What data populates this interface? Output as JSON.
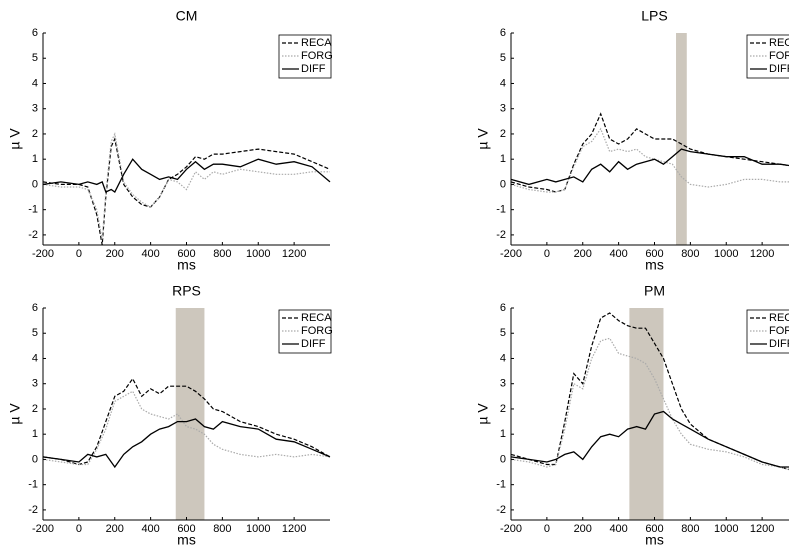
{
  "chart_data": [
    {
      "type": "line",
      "title": "CM",
      "x_label": "ms",
      "y_label": "µ V",
      "x": [
        -200,
        -100,
        0,
        50,
        100,
        130,
        150,
        180,
        200,
        250,
        300,
        350,
        400,
        450,
        500,
        550,
        600,
        650,
        700,
        750,
        800,
        900,
        1000,
        1100,
        1200,
        1300,
        1400
      ],
      "series": [
        {
          "name": "RECA",
          "color": "#000000",
          "style": "dashed",
          "values": [
            0.1,
            0,
            0,
            -0.1,
            -1.2,
            -2.4,
            -0.5,
            1.5,
            1.8,
            0,
            -0.5,
            -0.8,
            -0.9,
            -0.5,
            0.2,
            0.4,
            0.7,
            1.1,
            1.0,
            1.2,
            1.2,
            1.3,
            1.4,
            1.3,
            1.2,
            0.9,
            0.6
          ]
        },
        {
          "name": "FORG",
          "color": "#aaaaaa",
          "style": "dotted",
          "values": [
            0,
            -0.1,
            -0.1,
            -0.2,
            -1.0,
            -2.2,
            -0.3,
            1.7,
            2.0,
            0.1,
            -0.4,
            -0.7,
            -0.9,
            -0.5,
            0.2,
            0.1,
            -0.2,
            0.5,
            0.2,
            0.5,
            0.4,
            0.6,
            0.5,
            0.4,
            0.4,
            0.5,
            0.5
          ]
        },
        {
          "name": "DIFF",
          "color": "#000000",
          "style": "solid",
          "values": [
            0,
            0.1,
            0,
            0.1,
            0,
            0.1,
            -0.3,
            -0.2,
            -0.3,
            0.4,
            1.0,
            0.6,
            0.4,
            0.2,
            0.3,
            0.2,
            0.6,
            0.9,
            0.6,
            0.8,
            0.8,
            0.7,
            1.0,
            0.8,
            0.9,
            0.7,
            0.1
          ]
        }
      ],
      "xlim": [
        -200,
        1400
      ],
      "ylim": [
        -2.4,
        6
      ],
      "xticks": [
        -200,
        0,
        200,
        400,
        600,
        800,
        1000,
        1200
      ],
      "yticks": [
        -2,
        -1,
        0,
        1,
        2,
        3,
        4,
        5,
        6
      ]
    },
    {
      "type": "line",
      "title": "LPS",
      "x_label": "ms",
      "y_label": "µ V",
      "x": [
        -200,
        -100,
        0,
        50,
        100,
        150,
        200,
        250,
        300,
        350,
        400,
        450,
        500,
        550,
        600,
        650,
        700,
        750,
        800,
        900,
        1000,
        1100,
        1200,
        1300,
        1400
      ],
      "series": [
        {
          "name": "RECA",
          "color": "#000000",
          "style": "dashed",
          "values": [
            0.1,
            -0.1,
            -0.2,
            -0.3,
            -0.2,
            0.8,
            1.6,
            2.0,
            2.8,
            1.8,
            1.6,
            1.8,
            2.2,
            2.0,
            1.8,
            1.8,
            1.8,
            1.6,
            1.4,
            1.2,
            1.1,
            1.0,
            0.9,
            0.8,
            0.7
          ]
        },
        {
          "name": "FORG",
          "color": "#aaaaaa",
          "style": "dotted",
          "values": [
            0,
            -0.2,
            -0.3,
            -0.3,
            -0.2,
            0.7,
            1.5,
            1.7,
            2.2,
            1.3,
            1.4,
            1.3,
            1.4,
            1.1,
            1.0,
            0.9,
            0.8,
            0.3,
            0.0,
            -0.1,
            0.0,
            0.2,
            0.2,
            0.1,
            0.1
          ]
        },
        {
          "name": "DIFF",
          "color": "#000000",
          "style": "solid",
          "values": [
            0.2,
            0,
            0.2,
            0.1,
            0.2,
            0.3,
            0.1,
            0.6,
            0.8,
            0.5,
            0.9,
            0.6,
            0.8,
            0.9,
            1.0,
            0.8,
            1.1,
            1.4,
            1.3,
            1.2,
            1.1,
            1.1,
            0.8,
            0.8,
            0.7
          ]
        }
      ],
      "shaded_region": [
        720,
        780
      ],
      "shade_color": "#cdc7bd",
      "xlim": [
        -200,
        1400
      ],
      "ylim": [
        -2.4,
        6
      ],
      "xticks": [
        -200,
        0,
        200,
        400,
        600,
        800,
        1000,
        1200
      ],
      "yticks": [
        -2,
        -1,
        0,
        1,
        2,
        3,
        4,
        5,
        6
      ]
    },
    {
      "type": "line",
      "title": "RPS",
      "x_label": "ms",
      "y_label": "µ V",
      "x": [
        -200,
        -100,
        0,
        50,
        100,
        150,
        200,
        250,
        300,
        350,
        400,
        450,
        500,
        550,
        600,
        650,
        700,
        750,
        800,
        900,
        1000,
        1100,
        1200,
        1300,
        1400
      ],
      "series": [
        {
          "name": "RECA",
          "color": "#000000",
          "style": "dashed",
          "values": [
            0.1,
            0,
            -0.2,
            -0.1,
            0.5,
            1.5,
            2.5,
            2.7,
            3.2,
            2.5,
            2.8,
            2.6,
            2.9,
            2.9,
            2.9,
            2.7,
            2.4,
            2.0,
            1.9,
            1.5,
            1.3,
            1.0,
            0.8,
            0.5,
            0.1
          ]
        },
        {
          "name": "FORG",
          "color": "#aaaaaa",
          "style": "dotted",
          "values": [
            0,
            -0.1,
            -0.2,
            -0.2,
            0.4,
            1.2,
            2.3,
            2.5,
            2.7,
            2.0,
            1.8,
            1.7,
            1.6,
            1.8,
            1.3,
            1.2,
            1.0,
            0.6,
            0.4,
            0.2,
            0.1,
            0.2,
            0.1,
            0.2,
            0.1
          ]
        },
        {
          "name": "DIFF",
          "color": "#000000",
          "style": "solid",
          "values": [
            0.1,
            0,
            -0.1,
            0.2,
            0.1,
            0.2,
            -0.3,
            0.2,
            0.5,
            0.7,
            1.0,
            1.2,
            1.3,
            1.5,
            1.5,
            1.6,
            1.3,
            1.2,
            1.5,
            1.3,
            1.2,
            0.8,
            0.7,
            0.4,
            0.1
          ]
        }
      ],
      "shaded_region": [
        540,
        700
      ],
      "shade_color": "#cdc7bd",
      "xlim": [
        -200,
        1400
      ],
      "ylim": [
        -2.4,
        6
      ],
      "xticks": [
        -200,
        0,
        200,
        400,
        600,
        800,
        1000,
        1200
      ],
      "yticks": [
        -2,
        -1,
        0,
        1,
        2,
        3,
        4,
        5,
        6
      ]
    },
    {
      "type": "line",
      "title": "PM",
      "x_label": "ms",
      "y_label": "µ V",
      "x": [
        -200,
        -100,
        0,
        50,
        100,
        150,
        200,
        250,
        300,
        350,
        400,
        450,
        500,
        550,
        600,
        650,
        700,
        750,
        800,
        900,
        1000,
        1100,
        1200,
        1300,
        1400
      ],
      "series": [
        {
          "name": "RECA",
          "color": "#000000",
          "style": "dashed",
          "values": [
            0.2,
            0,
            -0.2,
            -0.2,
            1.5,
            3.4,
            3.0,
            4.5,
            5.6,
            5.8,
            5.5,
            5.3,
            5.2,
            5.2,
            4.6,
            4.0,
            3.0,
            2.0,
            1.4,
            0.8,
            0.5,
            0.2,
            -0.1,
            -0.3,
            -0.5
          ]
        },
        {
          "name": "FORG",
          "color": "#aaaaaa",
          "style": "dotted",
          "values": [
            0,
            -0.1,
            -0.3,
            -0.2,
            1.2,
            3.0,
            2.8,
            4.0,
            4.7,
            4.8,
            4.2,
            4.1,
            4.0,
            3.8,
            3.2,
            2.4,
            1.6,
            1.0,
            0.6,
            0.4,
            0.3,
            0.1,
            -0.2,
            -0.3,
            -0.5
          ]
        },
        {
          "name": "DIFF",
          "color": "#000000",
          "style": "solid",
          "values": [
            0.1,
            0,
            -0.1,
            0,
            0.2,
            0.3,
            0,
            0.5,
            0.9,
            1.0,
            0.9,
            1.2,
            1.3,
            1.2,
            1.8,
            1.9,
            1.6,
            1.4,
            1.2,
            0.8,
            0.5,
            0.2,
            -0.1,
            -0.3,
            -0.3
          ]
        }
      ],
      "shaded_region": [
        460,
        650
      ],
      "shade_color": "#cdc7bd",
      "xlim": [
        -200,
        1400
      ],
      "ylim": [
        -2.4,
        6
      ],
      "xticks": [
        -200,
        0,
        200,
        400,
        600,
        800,
        1000,
        1200
      ],
      "yticks": [
        -2,
        -1,
        0,
        1,
        2,
        3,
        4,
        5,
        6
      ]
    }
  ]
}
